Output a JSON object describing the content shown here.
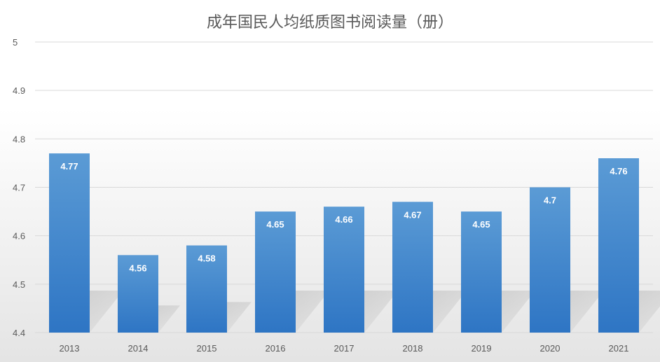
{
  "colors": {
    "bar_top": "#5b9bd5",
    "bar_bottom": "#2e75c4",
    "grid": "#d9d9d9",
    "axis_text": "#595959",
    "title": "#595959",
    "shadow": "#9e9e9e"
  },
  "chart_data": {
    "type": "bar",
    "title": "成年国民人均纸质图书阅读量（册）",
    "xlabel": "",
    "ylabel": "",
    "categories": [
      "2013",
      "2014",
      "2015",
      "2016",
      "2017",
      "2018",
      "2019",
      "2020",
      "2021"
    ],
    "values": [
      4.77,
      4.56,
      4.58,
      4.65,
      4.66,
      4.67,
      4.65,
      4.7,
      4.76
    ],
    "data_labels": [
      "4.77",
      "4.56",
      "4.58",
      "4.65",
      "4.66",
      "4.67",
      "4.65",
      "4.7",
      "4.76"
    ],
    "ylim": [
      4.4,
      5
    ],
    "yticks": [
      4.4,
      4.5,
      4.6,
      4.7,
      4.8,
      4.9,
      5
    ],
    "ytick_labels": [
      "4.4",
      "4.5",
      "4.6",
      "4.7",
      "4.8",
      "4.9",
      "5"
    ],
    "grid": true,
    "legend": "none"
  }
}
